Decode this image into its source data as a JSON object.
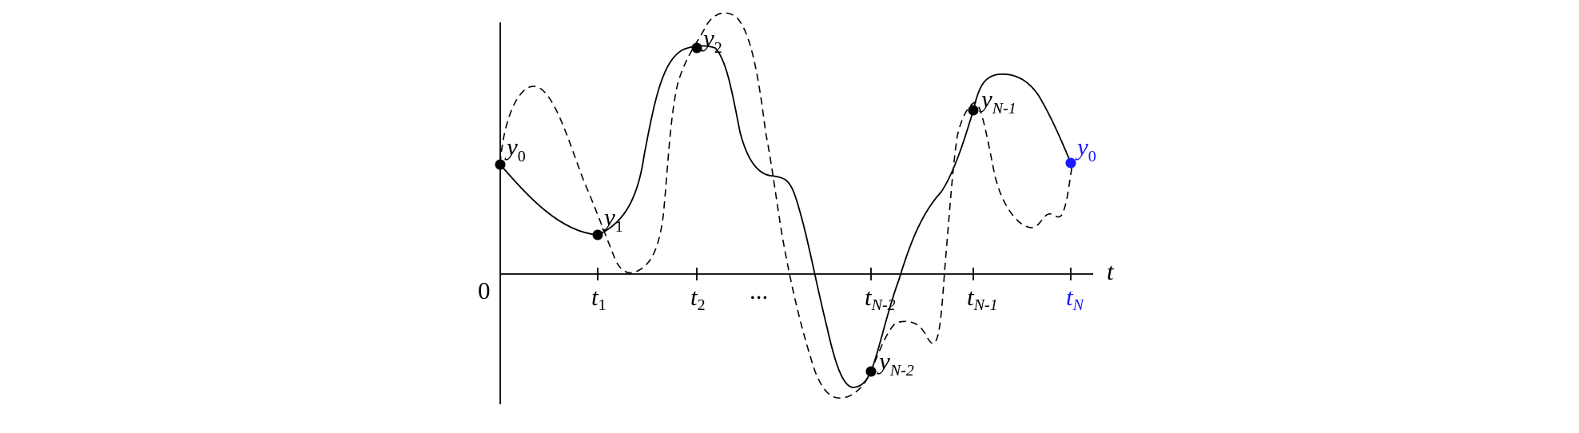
{
  "origin_label": "0",
  "axis_label": "t",
  "ellipsis": "...",
  "ticks": [
    {
      "main": "t",
      "sub": "1"
    },
    {
      "main": "t",
      "sub": "2"
    },
    {
      "main": "t",
      "sub": "N-2"
    },
    {
      "main": "t",
      "sub": "N-1"
    },
    {
      "main": "t",
      "sub": "N",
      "highlight": true
    }
  ],
  "points": [
    {
      "main": "y",
      "sub": "0"
    },
    {
      "main": "y",
      "sub": "1"
    },
    {
      "main": "y",
      "sub": "2"
    },
    {
      "main": "y",
      "sub": "N-2"
    },
    {
      "main": "y",
      "sub": "N-1"
    },
    {
      "main": "y",
      "sub": "0",
      "highlight": true
    }
  ],
  "colors": {
    "ink": "#000000",
    "highlight": "#1a1aff"
  }
}
